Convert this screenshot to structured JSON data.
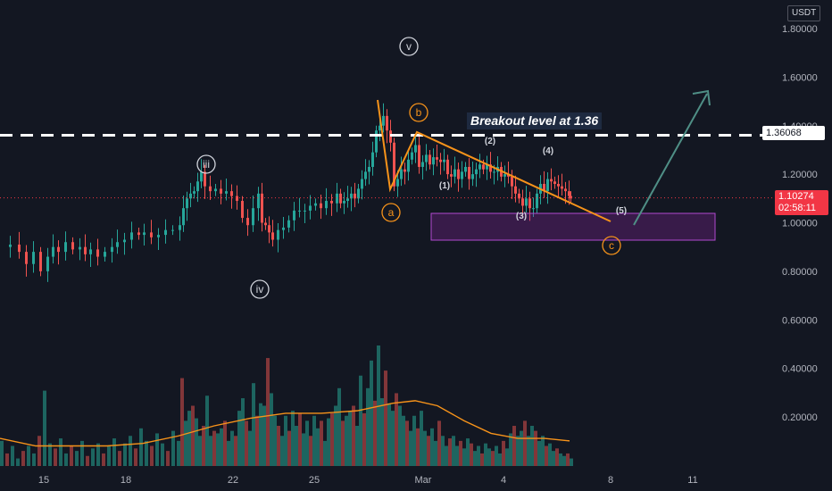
{
  "currency": "USDT",
  "colors": {
    "background": "#131722",
    "up": "#26a69a",
    "down": "#ef5350",
    "wave": "#f7931a",
    "zone": "#9c27b0",
    "arrow": "#4f8f86",
    "current_price": "#f23645"
  },
  "chart_data": {
    "type": "candlestick",
    "y_axis": {
      "range": [
        0.0,
        1.85
      ],
      "ticks": [
        "1.80000",
        "1.60000",
        "1.40000",
        "1.20000",
        "1.00000",
        "0.80000",
        "0.60000",
        "0.40000",
        "0.20000"
      ]
    },
    "x_axis": {
      "ticks": [
        "15",
        "18",
        "22",
        "25",
        "Mar",
        "4",
        "8",
        "11"
      ]
    },
    "price_labels": {
      "breakout": "1.36068",
      "current": "1.10274",
      "countdown": "02:58:11"
    },
    "breakout_level": 1.36068,
    "current_price": 1.10274,
    "annotation_text": "Breakout level at 1.36",
    "close_path": [
      [
        0,
        0.9
      ],
      [
        10,
        0.91
      ],
      [
        20,
        0.88
      ],
      [
        28,
        0.83
      ],
      [
        36,
        0.88
      ],
      [
        44,
        0.8
      ],
      [
        52,
        0.86
      ],
      [
        58,
        0.9
      ],
      [
        64,
        0.88
      ],
      [
        72,
        0.92
      ],
      [
        80,
        0.89
      ],
      [
        88,
        0.9
      ],
      [
        94,
        0.87
      ],
      [
        100,
        0.89
      ],
      [
        108,
        0.86
      ],
      [
        116,
        0.88
      ],
      [
        124,
        0.9
      ],
      [
        130,
        0.92
      ],
      [
        138,
        0.93
      ],
      [
        146,
        0.96
      ],
      [
        154,
        0.95
      ],
      [
        160,
        0.96
      ],
      [
        168,
        0.94
      ],
      [
        176,
        0.95
      ],
      [
        184,
        0.97
      ],
      [
        192,
        0.97
      ],
      [
        200,
        0.99
      ],
      [
        204,
        1.06
      ],
      [
        208,
        1.1
      ],
      [
        212,
        1.12
      ],
      [
        216,
        1.13
      ],
      [
        220,
        1.17
      ],
      [
        224,
        1.21
      ],
      [
        228,
        1.15
      ],
      [
        234,
        1.13
      ],
      [
        240,
        1.14
      ],
      [
        246,
        1.12
      ],
      [
        252,
        1.13
      ],
      [
        258,
        1.11
      ],
      [
        264,
        1.09
      ],
      [
        270,
        1.02
      ],
      [
        276,
        0.99
      ],
      [
        282,
        1.06
      ],
      [
        288,
        1.12
      ],
      [
        292,
        1.0
      ],
      [
        296,
        0.99
      ],
      [
        300,
        0.96
      ],
      [
        304,
        0.93
      ],
      [
        310,
        0.97
      ],
      [
        316,
        0.98
      ],
      [
        322,
        1.01
      ],
      [
        328,
        1.05
      ],
      [
        334,
        1.05
      ],
      [
        340,
        1.05
      ],
      [
        346,
        1.07
      ],
      [
        352,
        1.08
      ],
      [
        358,
        1.06
      ],
      [
        364,
        1.09
      ],
      [
        370,
        1.08
      ],
      [
        376,
        1.12
      ],
      [
        380,
        1.08
      ],
      [
        384,
        1.09
      ],
      [
        388,
        1.1
      ],
      [
        392,
        1.12
      ],
      [
        396,
        1.1
      ],
      [
        400,
        1.14
      ],
      [
        404,
        1.18
      ],
      [
        408,
        1.21
      ],
      [
        412,
        1.23
      ],
      [
        416,
        1.29
      ],
      [
        420,
        1.38
      ],
      [
        424,
        1.4
      ],
      [
        428,
        1.44
      ],
      [
        432,
        1.38
      ],
      [
        436,
        1.33
      ],
      [
        440,
        1.15
      ],
      [
        444,
        1.18
      ],
      [
        448,
        1.22
      ],
      [
        452,
        1.21
      ],
      [
        456,
        1.26
      ],
      [
        460,
        1.29
      ],
      [
        464,
        1.32
      ],
      [
        468,
        1.23
      ],
      [
        472,
        1.25
      ],
      [
        476,
        1.28
      ],
      [
        480,
        1.24
      ],
      [
        484,
        1.27
      ],
      [
        488,
        1.26
      ],
      [
        492,
        1.25
      ],
      [
        496,
        1.26
      ],
      [
        500,
        1.2
      ],
      [
        504,
        1.19
      ],
      [
        508,
        1.22
      ],
      [
        512,
        1.18
      ],
      [
        516,
        1.21
      ],
      [
        520,
        1.23
      ],
      [
        524,
        1.18
      ],
      [
        528,
        1.2
      ],
      [
        532,
        1.22
      ],
      [
        536,
        1.24
      ],
      [
        540,
        1.22
      ],
      [
        544,
        1.24
      ],
      [
        548,
        1.21
      ],
      [
        552,
        1.21
      ],
      [
        556,
        1.23
      ],
      [
        560,
        1.19
      ],
      [
        564,
        1.2
      ],
      [
        568,
        1.19
      ],
      [
        572,
        1.15
      ],
      [
        576,
        1.12
      ],
      [
        580,
        1.1
      ],
      [
        584,
        1.07
      ],
      [
        588,
        1.1
      ],
      [
        592,
        1.06
      ],
      [
        596,
        1.06
      ],
      [
        600,
        1.12
      ],
      [
        604,
        1.16
      ],
      [
        608,
        1.13
      ],
      [
        612,
        1.18
      ],
      [
        616,
        1.17
      ],
      [
        620,
        1.16
      ],
      [
        624,
        1.15
      ],
      [
        628,
        1.14
      ],
      [
        632,
        1.13
      ],
      [
        636,
        1.11
      ],
      [
        638,
        1.1
      ]
    ],
    "volume_series": [
      [
        0,
        0.1
      ],
      [
        6,
        0.05
      ],
      [
        12,
        0.08
      ],
      [
        18,
        0.03
      ],
      [
        24,
        0.06
      ],
      [
        30,
        0.08
      ],
      [
        36,
        0.05
      ],
      [
        42,
        0.12
      ],
      [
        48,
        0.3
      ],
      [
        54,
        0.09
      ],
      [
        60,
        0.07
      ],
      [
        66,
        0.11
      ],
      [
        72,
        0.05
      ],
      [
        78,
        0.08
      ],
      [
        84,
        0.06
      ],
      [
        90,
        0.1
      ],
      [
        96,
        0.04
      ],
      [
        102,
        0.07
      ],
      [
        108,
        0.09
      ],
      [
        114,
        0.05
      ],
      [
        120,
        0.08
      ],
      [
        126,
        0.11
      ],
      [
        132,
        0.06
      ],
      [
        138,
        0.09
      ],
      [
        144,
        0.12
      ],
      [
        150,
        0.07
      ],
      [
        156,
        0.15
      ],
      [
        162,
        0.1
      ],
      [
        168,
        0.08
      ],
      [
        174,
        0.13
      ],
      [
        180,
        0.09
      ],
      [
        186,
        0.06
      ],
      [
        192,
        0.14
      ],
      [
        198,
        0.1
      ],
      [
        202,
        0.35
      ],
      [
        206,
        0.18
      ],
      [
        210,
        0.22
      ],
      [
        214,
        0.24
      ],
      [
        218,
        0.19
      ],
      [
        222,
        0.12
      ],
      [
        226,
        0.16
      ],
      [
        230,
        0.28
      ],
      [
        234,
        0.12
      ],
      [
        238,
        0.14
      ],
      [
        242,
        0.13
      ],
      [
        246,
        0.15
      ],
      [
        250,
        0.18
      ],
      [
        254,
        0.1
      ],
      [
        258,
        0.14
      ],
      [
        262,
        0.12
      ],
      [
        266,
        0.22
      ],
      [
        270,
        0.27
      ],
      [
        274,
        0.18
      ],
      [
        278,
        0.14
      ],
      [
        282,
        0.33
      ],
      [
        286,
        0.2
      ],
      [
        290,
        0.25
      ],
      [
        294,
        0.24
      ],
      [
        298,
        0.43
      ],
      [
        302,
        0.29
      ],
      [
        306,
        0.2
      ],
      [
        310,
        0.16
      ],
      [
        314,
        0.12
      ],
      [
        318,
        0.2
      ],
      [
        322,
        0.14
      ],
      [
        326,
        0.22
      ],
      [
        330,
        0.16
      ],
      [
        334,
        0.21
      ],
      [
        338,
        0.13
      ],
      [
        342,
        0.18
      ],
      [
        346,
        0.12
      ],
      [
        350,
        0.2
      ],
      [
        354,
        0.15
      ],
      [
        358,
        0.18
      ],
      [
        362,
        0.1
      ],
      [
        366,
        0.19
      ],
      [
        370,
        0.21
      ],
      [
        374,
        0.24
      ],
      [
        378,
        0.31
      ],
      [
        382,
        0.18
      ],
      [
        386,
        0.2
      ],
      [
        390,
        0.22
      ],
      [
        394,
        0.24
      ],
      [
        398,
        0.16
      ],
      [
        402,
        0.36
      ],
      [
        406,
        0.21
      ],
      [
        410,
        0.31
      ],
      [
        414,
        0.42
      ],
      [
        418,
        0.26
      ],
      [
        422,
        0.48
      ],
      [
        426,
        0.27
      ],
      [
        430,
        0.38
      ],
      [
        434,
        0.25
      ],
      [
        438,
        0.22
      ],
      [
        442,
        0.29
      ],
      [
        446,
        0.24
      ],
      [
        450,
        0.2
      ],
      [
        454,
        0.18
      ],
      [
        458,
        0.14
      ],
      [
        462,
        0.2
      ],
      [
        466,
        0.15
      ],
      [
        470,
        0.22
      ],
      [
        474,
        0.14
      ],
      [
        478,
        0.12
      ],
      [
        482,
        0.15
      ],
      [
        486,
        0.1
      ],
      [
        490,
        0.18
      ],
      [
        494,
        0.12
      ],
      [
        498,
        0.08
      ],
      [
        502,
        0.11
      ],
      [
        506,
        0.12
      ],
      [
        510,
        0.08
      ],
      [
        514,
        0.1
      ],
      [
        518,
        0.07
      ],
      [
        522,
        0.11
      ],
      [
        526,
        0.09
      ],
      [
        530,
        0.06
      ],
      [
        534,
        0.08
      ],
      [
        538,
        0.05
      ],
      [
        542,
        0.09
      ],
      [
        546,
        0.07
      ],
      [
        550,
        0.06
      ],
      [
        554,
        0.08
      ],
      [
        558,
        0.05
      ],
      [
        562,
        0.1
      ],
      [
        566,
        0.07
      ],
      [
        570,
        0.13
      ],
      [
        574,
        0.16
      ],
      [
        578,
        0.12
      ],
      [
        582,
        0.14
      ],
      [
        586,
        0.18
      ],
      [
        590,
        0.12
      ],
      [
        594,
        0.16
      ],
      [
        598,
        0.14
      ],
      [
        602,
        0.1
      ],
      [
        606,
        0.12
      ],
      [
        610,
        0.08
      ],
      [
        614,
        0.09
      ],
      [
        618,
        0.06
      ],
      [
        622,
        0.07
      ],
      [
        626,
        0.05
      ],
      [
        630,
        0.04
      ],
      [
        634,
        0.05
      ],
      [
        638,
        0.03
      ]
    ],
    "volume_ma": [
      [
        0,
        0.11
      ],
      [
        40,
        0.08
      ],
      [
        80,
        0.08
      ],
      [
        120,
        0.08
      ],
      [
        160,
        0.09
      ],
      [
        200,
        0.12
      ],
      [
        240,
        0.16
      ],
      [
        280,
        0.19
      ],
      [
        320,
        0.21
      ],
      [
        360,
        0.21
      ],
      [
        400,
        0.22
      ],
      [
        440,
        0.25
      ],
      [
        465,
        0.26
      ],
      [
        490,
        0.24
      ],
      [
        520,
        0.18
      ],
      [
        550,
        0.13
      ],
      [
        580,
        0.11
      ],
      [
        610,
        0.11
      ],
      [
        638,
        0.1
      ]
    ],
    "wave_labels": [
      "v",
      "iii",
      "iv",
      "a",
      "b",
      "c",
      "(1)",
      "(2)",
      "(3)",
      "(4)",
      "(5)"
    ]
  }
}
